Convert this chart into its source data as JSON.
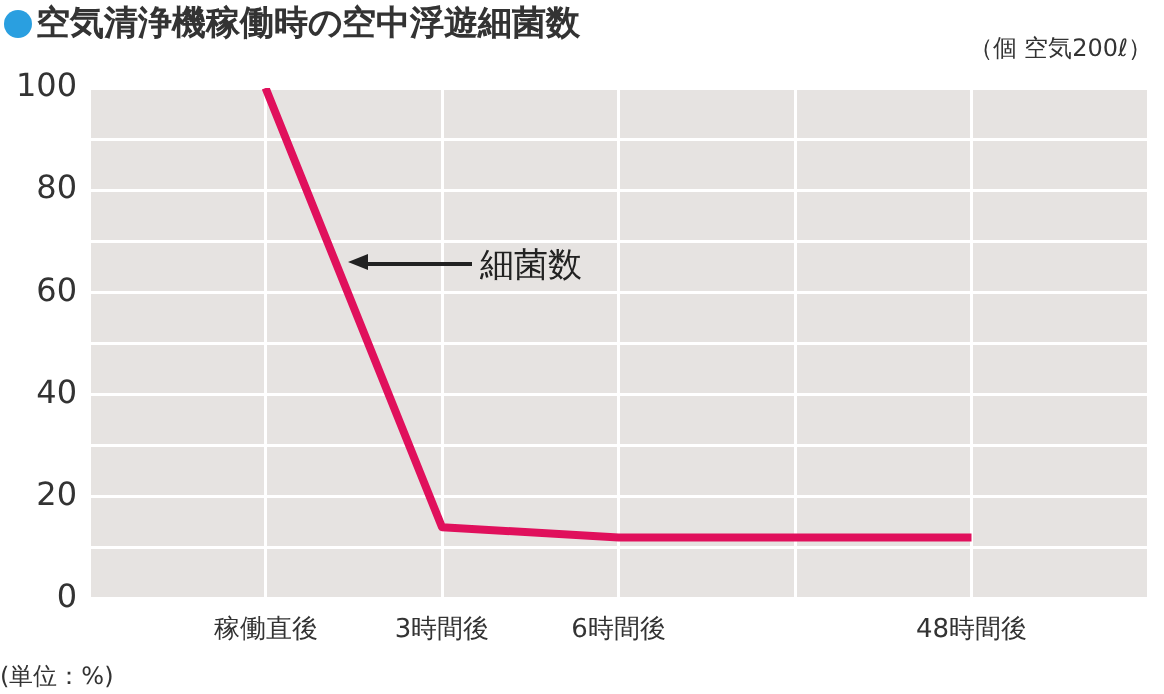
{
  "chart_data": {
    "type": "line",
    "title": "空気清浄機稼働時の空中浮遊細菌数",
    "ylabel": "(単位：%)",
    "annotations": [
      "（個 空気200ℓ）"
    ],
    "categories": [
      null,
      "稼働直後",
      "3時間後",
      "6時間後",
      null,
      "48時間後",
      null
    ],
    "series": [
      {
        "name": "細菌数",
        "color": "#e0105c",
        "values": [
          null,
          100,
          14,
          12,
          null,
          12,
          null
        ]
      }
    ],
    "ylim": [
      0,
      100
    ],
    "yticks": [
      0,
      {
        "value": 10,
        "label": null
      },
      20,
      {
        "value": 30,
        "label": null
      },
      40,
      {
        "value": 50,
        "label": null
      },
      60,
      {
        "value": 70,
        "label": null
      },
      80,
      {
        "value": 90,
        "label": null
      },
      100
    ],
    "grid": true,
    "legend": false,
    "marker": "none",
    "line_style": "solid"
  }
}
